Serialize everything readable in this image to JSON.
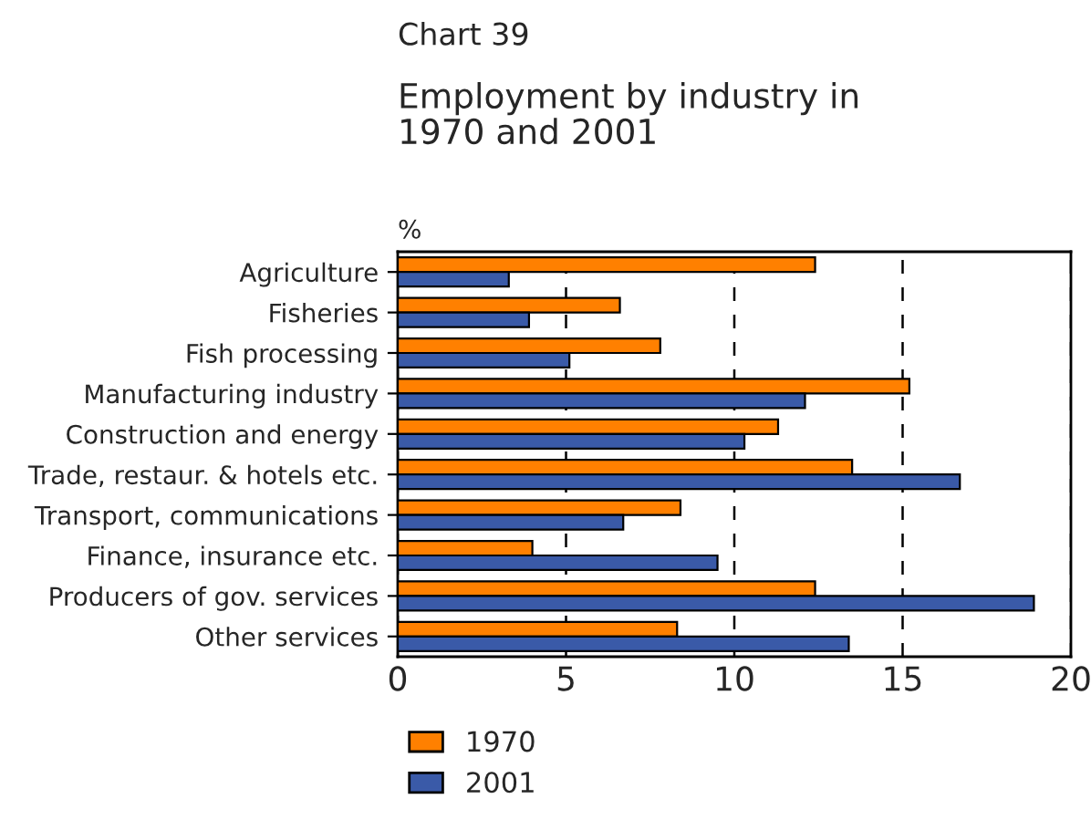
{
  "chart_data": {
    "type": "bar",
    "orientation": "horizontal",
    "title": "Chart 39",
    "subtitle": "Employment by industry in\n1970 and 2001",
    "xlabel": "%",
    "categories": [
      "Agriculture",
      "Fisheries",
      "Fish processing",
      "Manufacturing industry",
      "Construction and energy",
      "Trade, restaur. & hotels etc.",
      "Transport, communications",
      "Finance, insurance etc.",
      "Producers of gov. services",
      "Other services"
    ],
    "series": [
      {
        "name": "1970",
        "color": "#ff8000",
        "values": [
          12.4,
          6.6,
          7.8,
          15.2,
          11.3,
          13.5,
          8.4,
          4.0,
          12.4,
          8.3
        ]
      },
      {
        "name": "2001",
        "color": "#3a5aa8",
        "values": [
          3.3,
          3.9,
          5.1,
          12.1,
          10.3,
          16.7,
          6.7,
          9.5,
          18.9,
          13.4
        ]
      }
    ],
    "xlim": [
      0,
      20
    ],
    "xticks": [
      0,
      5,
      10,
      15,
      20
    ],
    "grid": "x",
    "legend": "bottom left"
  }
}
